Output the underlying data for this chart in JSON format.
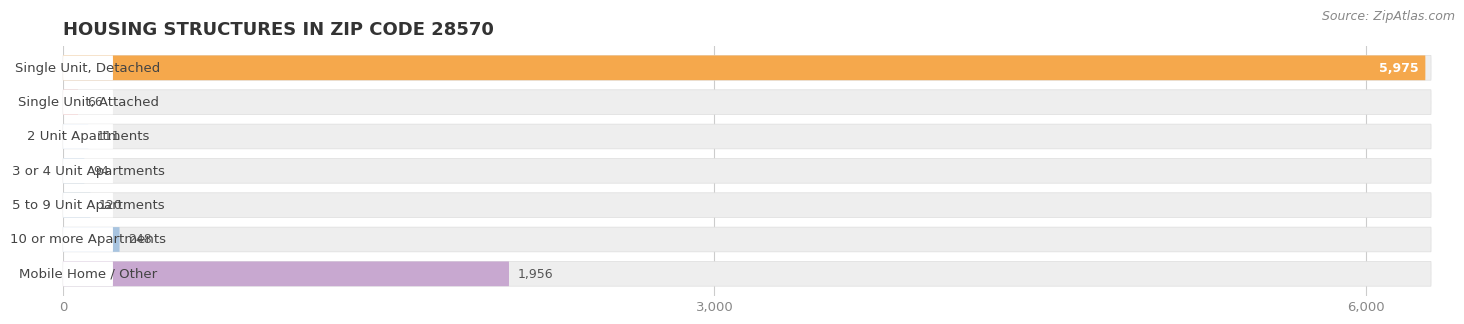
{
  "title": "HOUSING STRUCTURES IN ZIP CODE 28570",
  "source": "Source: ZipAtlas.com",
  "categories": [
    "Single Unit, Detached",
    "Single Unit, Attached",
    "2 Unit Apartments",
    "3 or 4 Unit Apartments",
    "5 to 9 Unit Apartments",
    "10 or more Apartments",
    "Mobile Home / Other"
  ],
  "values": [
    5975,
    66,
    111,
    94,
    120,
    248,
    1956
  ],
  "bar_colors": [
    "#f5a84c",
    "#f2a0a0",
    "#a8c4e0",
    "#a8c4e0",
    "#a8c4e0",
    "#a8c4e0",
    "#c8a8d0"
  ],
  "bar_bg_color": "#eeeeee",
  "value_labels": [
    "5,975",
    "66",
    "111",
    "94",
    "120",
    "248",
    "1,956"
  ],
  "xmax": 6300,
  "xticks": [
    0,
    3000,
    6000
  ],
  "xtick_labels": [
    "0",
    "3,000",
    "6,000"
  ],
  "background_color": "#ffffff",
  "title_fontsize": 13,
  "label_fontsize": 9.5,
  "value_fontsize": 9,
  "source_fontsize": 9,
  "bar_height": 0.72,
  "bar_gap": 0.28,
  "fig_width": 14.06,
  "fig_height": 3.41
}
